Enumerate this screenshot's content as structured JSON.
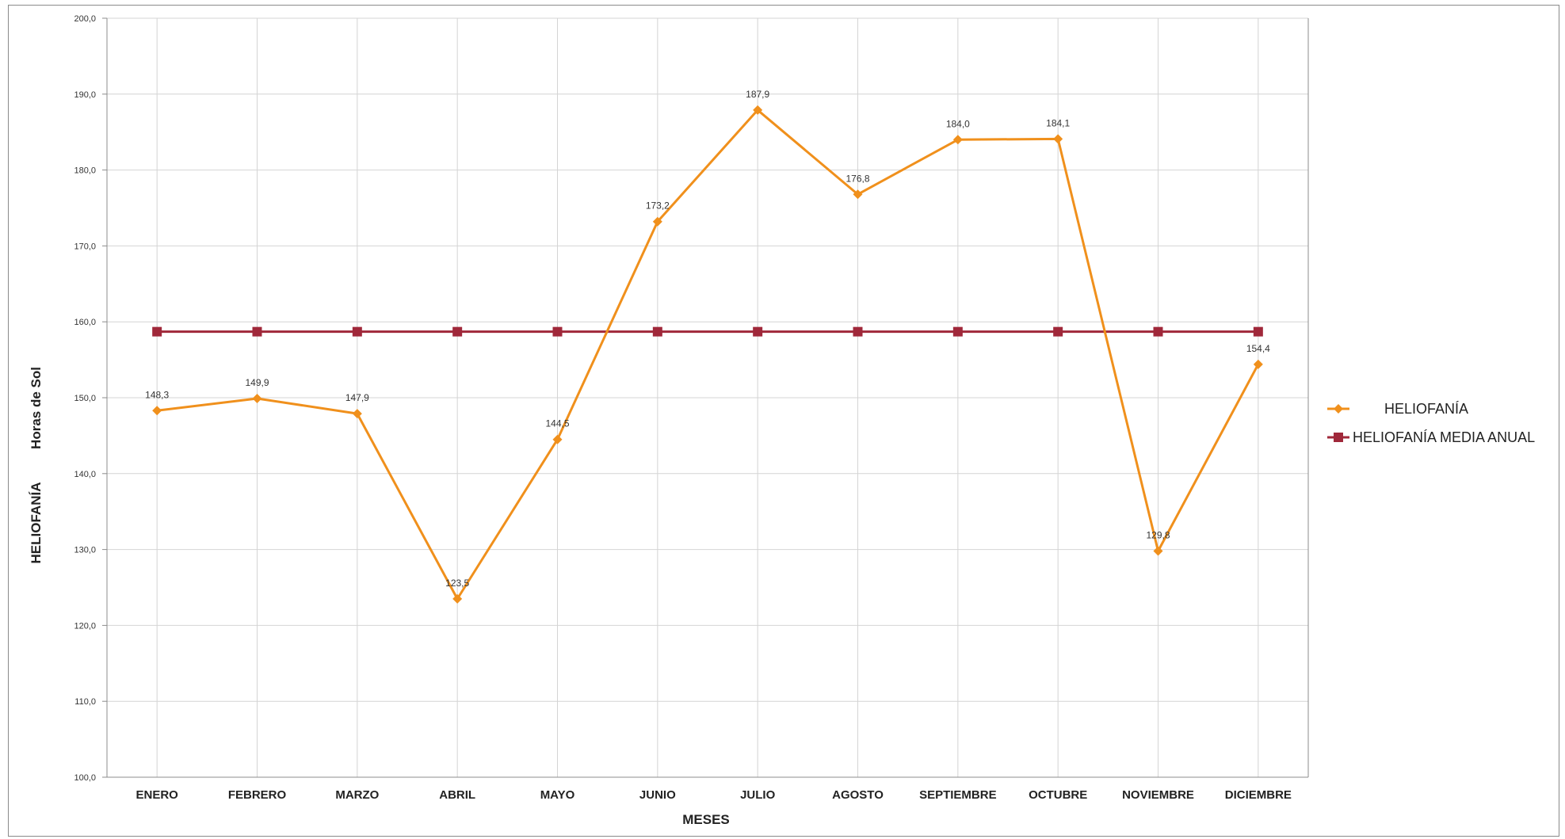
{
  "colors": {
    "heliofania": "#F0901C",
    "media_anual": "#A0283A",
    "grid": "#D4D4D4",
    "axis": "#8C8C8C"
  },
  "chart_data": {
    "type": "line",
    "title": "",
    "categories": [
      "ENERO",
      "FEBRERO",
      "MARZO",
      "ABRIL",
      "MAYO",
      "JUNIO",
      "JULIO",
      "AGOSTO",
      "SEPTIEMBRE",
      "OCTUBRE",
      "NOVIEMBRE",
      "DICIEMBRE"
    ],
    "series": [
      {
        "name": "HELIOFANÍA",
        "marker": "diamond",
        "values": [
          148.3,
          149.9,
          147.9,
          123.5,
          144.5,
          173.2,
          187.9,
          176.8,
          184.0,
          184.1,
          129.8,
          154.4
        ],
        "labels": [
          "148,3",
          "149,9",
          "147,9",
          "123,5",
          "144,5",
          "173,2",
          "187,9",
          "176,8",
          "184,0",
          "184,1",
          "129,8",
          "154,4"
        ]
      },
      {
        "name": "HELIOFANÍA MEDIA ANUAL",
        "marker": "square",
        "values": [
          158.7,
          158.7,
          158.7,
          158.7,
          158.7,
          158.7,
          158.7,
          158.7,
          158.7,
          158.7,
          158.7,
          158.7
        ]
      }
    ],
    "xlabel": "MESES",
    "ylabel_main": "HELIOFANÍA",
    "ylabel_unit": "Horas de Sol",
    "ylim": [
      100,
      200
    ],
    "yticks": [
      100,
      110,
      120,
      130,
      140,
      150,
      160,
      170,
      180,
      190,
      200
    ],
    "ytick_labels": [
      "100,0",
      "110,0",
      "120,0",
      "130,0",
      "140,0",
      "150,0",
      "160,0",
      "170,0",
      "180,0",
      "190,0",
      "200,0"
    ],
    "grid": true,
    "legend_position": "right"
  }
}
